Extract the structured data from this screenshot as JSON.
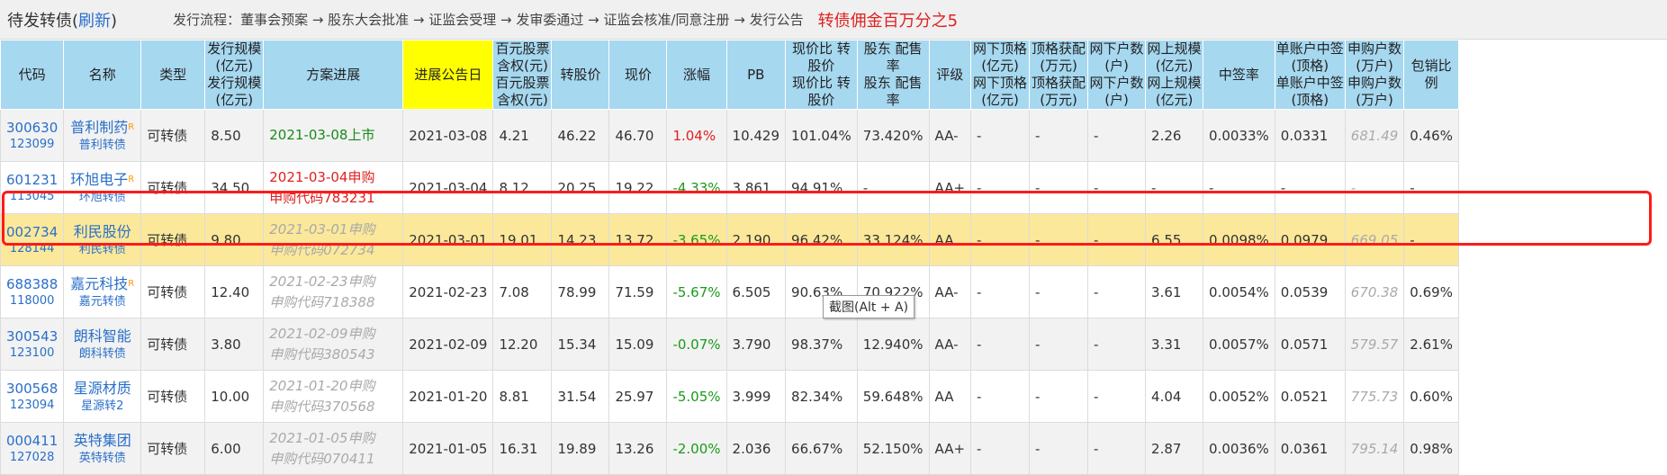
{
  "header": {
    "title": "待发转债",
    "refresh_open": "(",
    "refresh": "刷新",
    "refresh_close": ")",
    "flow": "发行流程：董事会预案 → 股东大会批准 → 证监会受理 → 发审委通过 → 证监会核准/同意注册 → 发行公告",
    "commission": "转债佣金百万分之5"
  },
  "columns": [
    "代码",
    "名称",
    "类型",
    "发行规模\n(亿元)",
    "方案进展",
    "进展公告日",
    "百元股票\n含权(元)",
    "转股价",
    "现价",
    "涨幅",
    "PB",
    "现价比\n转股价",
    "股东\n配售率",
    "评级",
    "网下顶格\n(亿元)",
    "顶格获配\n(万元)",
    "网下户数\n(户)",
    "网上规模\n(亿元)",
    "中签率",
    "单账户中签\n(顶格)",
    "申购户数\n(万户)",
    "包销比例"
  ],
  "rows": [
    {
      "code": "300630",
      "bond_code": "123099",
      "name": "普利制药",
      "r_mark": "R",
      "bond_name": "普利转债",
      "type": "可转债",
      "scale": "8.50",
      "progress_line1": "2021-03-08上市",
      "progress_line2": "",
      "progress_style": "listed",
      "date": "2021-03-08",
      "content": "4.21",
      "conv_price": "46.22",
      "price": "46.70",
      "change": "1.04%",
      "change_dir": "up",
      "pb": "10.429",
      "price_ratio": "101.04%",
      "placement": "73.420%",
      "rating": "AA-",
      "off_top": "-",
      "top_alloc": "-",
      "off_count": "-",
      "online_scale": "2.26",
      "win_rate": "0.0033%",
      "single_win": "0.0331",
      "applicants": "681.49",
      "underwrite": "0.46%"
    },
    {
      "code": "601231",
      "bond_code": "113045",
      "name": "环旭电子",
      "r_mark": "R",
      "bond_name": "环旭转债",
      "type": "可转债",
      "scale": "34.50",
      "progress_line1": "2021-03-04申购",
      "progress_line2": "申购代码783231",
      "progress_style": "active",
      "date": "2021-03-04",
      "content": "8.12",
      "conv_price": "20.25",
      "price": "19.22",
      "change": "-4.33%",
      "change_dir": "down",
      "pb": "3.861",
      "price_ratio": "94.91%",
      "placement": "-",
      "rating": "AA+",
      "off_top": "-",
      "top_alloc": "-",
      "off_count": "-",
      "online_scale": "-",
      "win_rate": "-",
      "single_win": "-",
      "applicants": "-",
      "underwrite": "-"
    },
    {
      "code": "002734",
      "bond_code": "128144",
      "name": "利民股份",
      "r_mark": "",
      "bond_name": "利民转债",
      "type": "可转债",
      "scale": "9.80",
      "progress_line1": "2021-03-01申购",
      "progress_line2": "申购代码072734",
      "progress_style": "past",
      "date": "2021-03-01",
      "content": "19.01",
      "conv_price": "14.23",
      "price": "13.72",
      "change": "-3.65%",
      "change_dir": "down",
      "pb": "2.190",
      "price_ratio": "96.42%",
      "placement": "33.124%",
      "rating": "AA",
      "off_top": "-",
      "top_alloc": "-",
      "off_count": "-",
      "online_scale": "6.55",
      "win_rate": "0.0098%",
      "single_win": "0.0979",
      "applicants": "669.05",
      "underwrite": "-"
    },
    {
      "code": "688388",
      "bond_code": "118000",
      "name": "嘉元科技",
      "r_mark": "R",
      "bond_name": "嘉元转债",
      "type": "可转债",
      "scale": "12.40",
      "progress_line1": "2021-02-23申购",
      "progress_line2": "申购代码718388",
      "progress_style": "past",
      "date": "2021-02-23",
      "content": "7.08",
      "conv_price": "78.99",
      "price": "71.59",
      "change": "-5.67%",
      "change_dir": "down",
      "pb": "6.505",
      "price_ratio": "90.63%",
      "placement": "70.922%",
      "rating": "AA-",
      "off_top": "-",
      "top_alloc": "-",
      "off_count": "-",
      "online_scale": "3.61",
      "win_rate": "0.0054%",
      "single_win": "0.0539",
      "applicants": "670.38",
      "underwrite": "0.69%"
    },
    {
      "code": "300543",
      "bond_code": "123100",
      "name": "朗科智能",
      "r_mark": "",
      "bond_name": "朗科转债",
      "type": "可转债",
      "scale": "3.80",
      "progress_line1": "2021-02-09申购",
      "progress_line2": "申购代码380543",
      "progress_style": "past",
      "date": "2021-02-09",
      "content": "12.20",
      "conv_price": "15.34",
      "price": "15.09",
      "change": "-0.07%",
      "change_dir": "down",
      "pb": "3.790",
      "price_ratio": "98.37%",
      "placement": "12.940%",
      "rating": "AA-",
      "off_top": "-",
      "top_alloc": "-",
      "off_count": "-",
      "online_scale": "3.31",
      "win_rate": "0.0057%",
      "single_win": "0.0571",
      "applicants": "579.57",
      "underwrite": "2.61%"
    },
    {
      "code": "300568",
      "bond_code": "123094",
      "name": "星源材质",
      "r_mark": "",
      "bond_name": "星源转2",
      "type": "可转债",
      "scale": "10.00",
      "progress_line1": "2021-01-20申购",
      "progress_line2": "申购代码370568",
      "progress_style": "past",
      "date": "2021-01-20",
      "content": "8.81",
      "conv_price": "31.54",
      "price": "25.97",
      "change": "-5.05%",
      "change_dir": "down",
      "pb": "3.999",
      "price_ratio": "82.34%",
      "placement": "59.648%",
      "rating": "AA",
      "off_top": "-",
      "top_alloc": "-",
      "off_count": "-",
      "online_scale": "4.04",
      "win_rate": "0.0052%",
      "single_win": "0.0521",
      "applicants": "775.73",
      "underwrite": "0.60%"
    },
    {
      "code": "000411",
      "bond_code": "127028",
      "name": "英特集团",
      "r_mark": "",
      "bond_name": "英特转债",
      "type": "可转债",
      "scale": "6.00",
      "progress_line1": "2021-01-05申购",
      "progress_line2": "申购代码070411",
      "progress_style": "past",
      "date": "2021-01-05",
      "content": "16.31",
      "conv_price": "19.89",
      "price": "13.26",
      "change": "-2.00%",
      "change_dir": "down",
      "pb": "2.036",
      "price_ratio": "66.67%",
      "placement": "52.150%",
      "rating": "AA+",
      "off_top": "-",
      "top_alloc": "-",
      "off_count": "-",
      "online_scale": "2.87",
      "win_rate": "0.0036%",
      "single_win": "0.0361",
      "applicants": "795.14",
      "underwrite": "0.98%"
    }
  ],
  "tooltip": "截图(Alt + A)",
  "selected_row": 2,
  "colors": {
    "header_bg": "#a6d8f0",
    "highlight_col": "#ffff00",
    "selected_row": "#fbe89a",
    "selection_border": "#ff1a1a",
    "link": "#2a6fc9",
    "up": "#e02020",
    "down": "#1a9a1a"
  }
}
